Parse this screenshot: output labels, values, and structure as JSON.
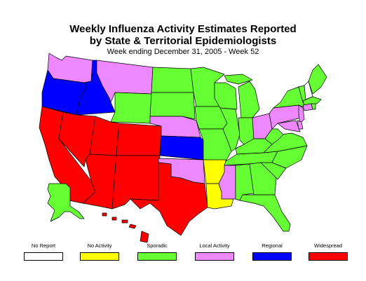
{
  "title_line1": "Weekly Influenza Activity Estimates Reported",
  "title_line2": "by State & Territorial Epidemiologists",
  "subtitle": "Week ending December 31, 2005 - Week 52",
  "colors": {
    "no_report": "#ffffff",
    "no_activity": "#ffff00",
    "sporadic": "#66ff33",
    "local": "#ee88ff",
    "regional": "#0000ff",
    "widespread": "#ff0000"
  },
  "legend": [
    {
      "label": "No Report",
      "key": "no_report"
    },
    {
      "label": "No Activity",
      "key": "no_activity"
    },
    {
      "label": "Sporadic",
      "key": "sporadic"
    },
    {
      "label": "Local Activity",
      "key": "local"
    },
    {
      "label": "Regional",
      "key": "regional"
    },
    {
      "label": "Widespread",
      "key": "widespread"
    }
  ],
  "states": {
    "WA": "local",
    "OR": "regional",
    "CA": "widespread",
    "ID": "regional",
    "NV": "widespread",
    "MT": "local",
    "WY": "sporadic",
    "UT": "widespread",
    "AZ": "widespread",
    "CO": "widespread",
    "NM": "widespread",
    "ND": "sporadic",
    "SD": "sporadic",
    "NE": "local",
    "KS": "regional",
    "OK": "local",
    "TX": "widespread",
    "MN": "sporadic",
    "IA": "sporadic",
    "MO": "sporadic",
    "AR": "no_activity",
    "LA": "no_activity",
    "WI": "sporadic",
    "IL": "sporadic",
    "MI": "sporadic",
    "IN": "sporadic",
    "OH": "local",
    "KY": "sporadic",
    "TN": "sporadic",
    "MS": "local",
    "AL": "sporadic",
    "GA": "sporadic",
    "FL": "sporadic",
    "SC": "sporadic",
    "NC": "sporadic",
    "VA": "sporadic",
    "WV": "sporadic",
    "PA": "local",
    "NY": "sporadic",
    "NJ": "local",
    "DE": "local",
    "MD": "local",
    "VT": "sporadic",
    "NH": "no_report",
    "ME": "sporadic",
    "MA": "sporadic",
    "CT": "local",
    "RI": "sporadic",
    "AK": "sporadic",
    "HI": "widespread"
  }
}
